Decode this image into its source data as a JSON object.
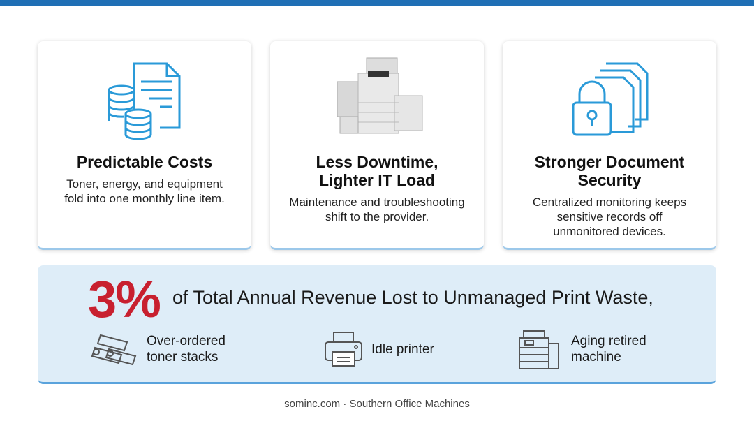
{
  "cards": [
    {
      "title": [
        "Predictable Costs"
      ],
      "description": [
        "Toner, energy, and equipment",
        "fold into one monthly line item."
      ]
    },
    {
      "title": [
        "Less Downtime,",
        "Lighter IT Load"
      ],
      "description": [
        "Maintenance and troubleshooting",
        "shift to the provider."
      ]
    },
    {
      "title": [
        "Stronger Document",
        "Security"
      ],
      "description": [
        "Centralized monitoring keeps",
        "sensitive records off",
        "unmonitored devices."
      ]
    }
  ],
  "banner": {
    "stat": "3%",
    "text": "of Total Annual Revenue Lost to Unmanaged Print Waste,",
    "items": [
      [
        "Over-ordered",
        "toner stacks"
      ],
      [
        "Idle printer"
      ],
      [
        "Aging retired",
        "machine"
      ]
    ]
  },
  "footer": "sominc.com · Southern Office Machines"
}
